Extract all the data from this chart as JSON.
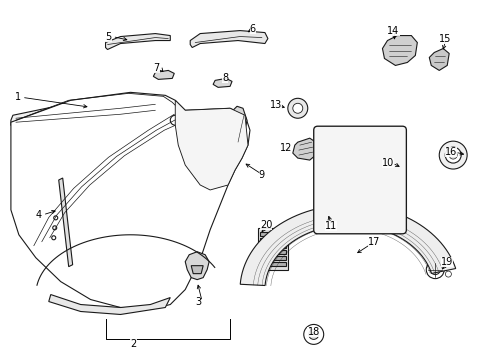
{
  "background_color": "#ffffff",
  "line_color": "#1a1a1a",
  "fig_width": 4.89,
  "fig_height": 3.6,
  "dpi": 100,
  "label_fontsize": 7.0,
  "lw": 0.8
}
